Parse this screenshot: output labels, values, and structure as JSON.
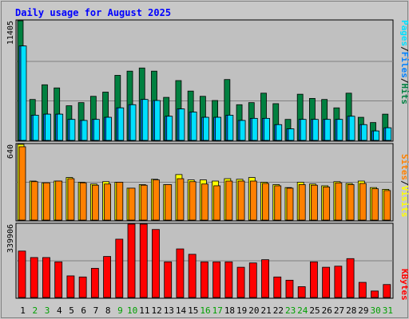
{
  "chart_data": {
    "type": "bar",
    "title": "Daily usage for August 2025",
    "categories": [
      "1",
      "2",
      "3",
      "4",
      "5",
      "6",
      "7",
      "8",
      "9",
      "10",
      "11",
      "12",
      "13",
      "14",
      "15",
      "16",
      "17",
      "18",
      "19",
      "20",
      "21",
      "22",
      "23",
      "24",
      "25",
      "26",
      "27",
      "28",
      "29",
      "30",
      "31"
    ],
    "weekend_days": [
      "2",
      "3",
      "9",
      "10",
      "16",
      "17",
      "23",
      "24",
      "30",
      "31"
    ],
    "panels": [
      {
        "name": "hits_files_pages",
        "ymax_label": "11405",
        "ymax": 11405,
        "series": [
          {
            "name": "Hits",
            "color": "#008040",
            "values": [
              11405,
              3900,
              5300,
              5000,
              3300,
              3600,
              4200,
              4600,
              6200,
              6600,
              6900,
              6600,
              4100,
              5700,
              4700,
              4200,
              3800,
              5800,
              3400,
              3600,
              4500,
              3500,
              2000,
              4400,
              4000,
              3900,
              3100,
              4500,
              2200,
              1700,
              2500
            ]
          },
          {
            "name": "Files",
            "color": "#0080ff",
            "values": [
              9000,
              2400,
              2500,
              2500,
              2000,
              1900,
              2000,
              2200,
              3100,
              3400,
              3900,
              3800,
              2300,
              3000,
              2700,
              2200,
              2200,
              2400,
              1900,
              2100,
              2100,
              1500,
              1100,
              2000,
              2000,
              2000,
              2000,
              2300,
              1500,
              900,
              1200
            ]
          },
          {
            "name": "Pages",
            "color": "#00e0ff",
            "values": [
              9000,
              2400,
              2500,
              2500,
              2000,
              1900,
              2000,
              2200,
              3100,
              3400,
              3900,
              3800,
              2300,
              3000,
              2700,
              2200,
              2200,
              2400,
              1900,
              2100,
              2100,
              1500,
              1100,
              2000,
              2000,
              2000,
              2000,
              2300,
              1500,
              900,
              1200
            ]
          }
        ]
      },
      {
        "name": "visits_sites",
        "ymax_label": "640",
        "ymax": 640,
        "series": [
          {
            "name": "Visits",
            "color": "#ffff00",
            "values": [
              640,
              330,
              315,
              330,
              360,
              320,
              305,
              325,
              320,
              270,
              300,
              345,
              300,
              385,
              340,
              340,
              330,
              350,
              345,
              360,
              320,
              300,
              275,
              320,
              305,
              290,
              325,
              310,
              330,
              275,
              260
            ]
          },
          {
            "name": "Sites",
            "color": "#ff8000",
            "values": [
              620,
              325,
              315,
              330,
              350,
              315,
              295,
              305,
              320,
              270,
              295,
              340,
              300,
              350,
              325,
              305,
              290,
              330,
              330,
              330,
              310,
              290,
              270,
              300,
              295,
              280,
              315,
              300,
              310,
              265,
              250
            ]
          }
        ]
      },
      {
        "name": "kbytes",
        "ymax_label": "339906",
        "ymax": 339906,
        "series": [
          {
            "name": "KBytes",
            "color": "#ff0000",
            "values": [
              215000,
              185000,
              185000,
              165000,
              100000,
              95000,
              135000,
              190000,
              270000,
              339906,
              339906,
              315000,
              165000,
              225000,
              200000,
              165000,
              165000,
              165000,
              140000,
              160000,
              175000,
              95000,
              80000,
              50000,
              165000,
              140000,
              145000,
              180000,
              70000,
              30000,
              60000
            ]
          }
        ]
      }
    ],
    "side_labels": {
      "panel1": [
        "Pages",
        "/",
        "Files",
        "/",
        "Hits"
      ],
      "panel2": [
        "Sites",
        "/",
        "Visits"
      ],
      "panel3": [
        "KBytes"
      ]
    },
    "colors": {
      "background": "#c8c8c8",
      "plot_bg": "#c0c0c0",
      "title": "#0000ff",
      "weekday_label": "#000000",
      "weekend_label": "#00a000"
    }
  }
}
